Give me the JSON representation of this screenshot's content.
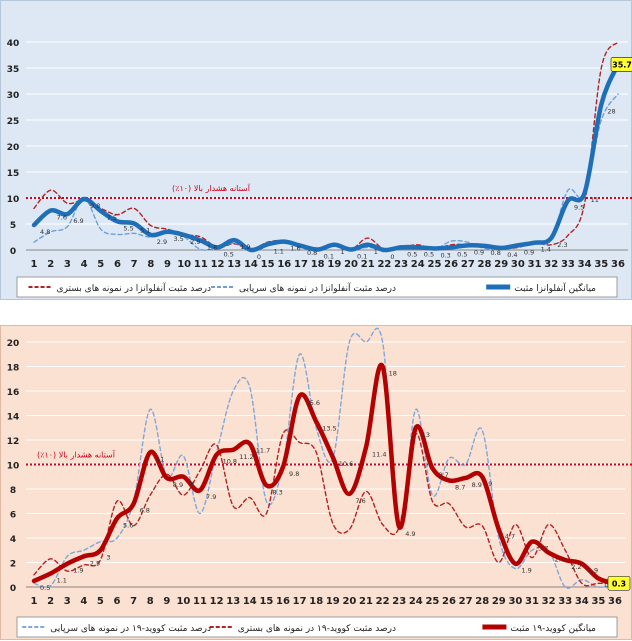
{
  "chart_data": [
    {
      "type": "line",
      "categories": [
        1,
        2,
        3,
        4,
        5,
        6,
        7,
        8,
        9,
        10,
        11,
        12,
        13,
        14,
        15,
        16,
        17,
        18,
        19,
        20,
        21,
        22,
        23,
        24,
        25,
        26,
        27,
        28,
        29,
        30,
        31,
        32,
        33,
        34,
        35,
        36
      ],
      "ylim": [
        0,
        40
      ],
      "yticks": [
        0,
        5,
        10,
        15,
        20,
        25,
        30,
        35,
        40
      ],
      "grid": true,
      "threshold": {
        "value": 10,
        "label": "آستانه هشدار بالا (۱۰٪)",
        "color": "#d0021b"
      },
      "legend_position": "bottom",
      "highlight_label": "35.7",
      "series": [
        {
          "name": "میانگین آنفلوانزا مثبت",
          "style": "solid-thick",
          "color": "#1f6fb8",
          "values": [
            4.8,
            7.6,
            6.9,
            9.8,
            7.5,
            5.5,
            5.1,
            2.9,
            3.5,
            2.9,
            1.8,
            0.5,
            1.9,
            0,
            1.1,
            1.6,
            0.8,
            0.1,
            1,
            0.1,
            1,
            0,
            0.5,
            0.5,
            0.3,
            0.5,
            0.9,
            0.8,
            0.4,
            0.9,
            1.4,
            2.3,
            9.5,
            11,
            28,
            35.7
          ]
        },
        {
          "name": "درصد مثبت آنفلوانزا در نمونه های سرپایی",
          "style": "dashed",
          "color": "#6f9fd8",
          "values": [
            1.5,
            3.5,
            4.5,
            10,
            4,
            3,
            3.2,
            2.5,
            3.8,
            2.5,
            0.1,
            0.4,
            1.3,
            0.1,
            1,
            1.6,
            0.8,
            0.1,
            1,
            0.1,
            0.5,
            0.1,
            0.8,
            0.8,
            0.1,
            1.7,
            1.5,
            0.3,
            0.4,
            0.9,
            1.4,
            2,
            11.5,
            10.5,
            25,
            30
          ]
        },
        {
          "name": "درصد مثبت آنفلوانزا در نمونه های بستری",
          "style": "dashed",
          "color": "#b22222",
          "values": [
            8,
            11.5,
            9,
            9.5,
            8,
            6.8,
            8,
            4.7,
            4,
            3,
            2.5,
            0.5,
            1.2,
            0.1,
            1.5,
            1.8,
            1,
            0.1,
            0.8,
            0.1,
            2.3,
            0.1,
            0.5,
            1,
            0.2,
            1,
            1,
            0.5,
            0.3,
            0.5,
            1.4,
            1,
            2.8,
            9,
            35,
            42
          ]
        }
      ]
    },
    {
      "type": "line",
      "categories": [
        1,
        2,
        3,
        4,
        5,
        6,
        7,
        8,
        9,
        10,
        11,
        12,
        13,
        14,
        15,
        16,
        17,
        18,
        19,
        20,
        21,
        22,
        23,
        24,
        25,
        26,
        27,
        28,
        29,
        30,
        31,
        32,
        33,
        34,
        35,
        36
      ],
      "ylim": [
        0,
        20
      ],
      "yticks": [
        0,
        2,
        4,
        6,
        8,
        10,
        12,
        14,
        16,
        18,
        20
      ],
      "grid": true,
      "threshold": {
        "value": 10,
        "label": "آستانه هشدار بالا (۱۰٪)",
        "color": "#d0021b"
      },
      "legend_position": "bottom",
      "highlight_label": "0.3",
      "series": [
        {
          "name": "میانگین کووید-۱۹ مثبت",
          "style": "solid-thick",
          "color": "#b30000",
          "values": [
            0.5,
            1.1,
            1.9,
            2.5,
            3,
            5.6,
            6.8,
            11,
            8.9,
            9,
            7.9,
            10.8,
            11.2,
            11.7,
            8.3,
            9.8,
            15.6,
            13.5,
            10.6,
            7.6,
            11.4,
            18,
            4.9,
            13,
            9.7,
            8.7,
            8.9,
            9,
            4.7,
            1.9,
            3.7,
            2.8,
            2.2,
            1.9,
            0.7,
            0.3
          ]
        },
        {
          "name": "درصد  مثبت کووید-۱۹ در نمونه های بستری",
          "style": "dashed",
          "color": "#b22222",
          "values": [
            1,
            2.3,
            1.3,
            1.8,
            2.2,
            7,
            5,
            7.5,
            9.2,
            7.5,
            9.5,
            11.6,
            6.6,
            7.3,
            6,
            12.5,
            11.8,
            11,
            5.2,
            4.7,
            7.8,
            5.1,
            4.9,
            12.5,
            7,
            6.8,
            4.9,
            5,
            2,
            5.1,
            2.4,
            5.1,
            3,
            0.3,
            0.3,
            0.3
          ]
        },
        {
          "name": "درصد  مثبت کووید-۱۹ در نمونه های سرپایی",
          "style": "dashed",
          "color": "#7fa7d9",
          "values": [
            0.3,
            0.1,
            2.5,
            3,
            3.7,
            4,
            7,
            14.5,
            9,
            10.7,
            6,
            11,
            16,
            16.3,
            7,
            10,
            19,
            13,
            10.5,
            20,
            20,
            20,
            5,
            14.5,
            7.5,
            10.5,
            10,
            12.8,
            4,
            1.5,
            3,
            3,
            0,
            0.6,
            0,
            0.2
          ]
        }
      ]
    }
  ]
}
